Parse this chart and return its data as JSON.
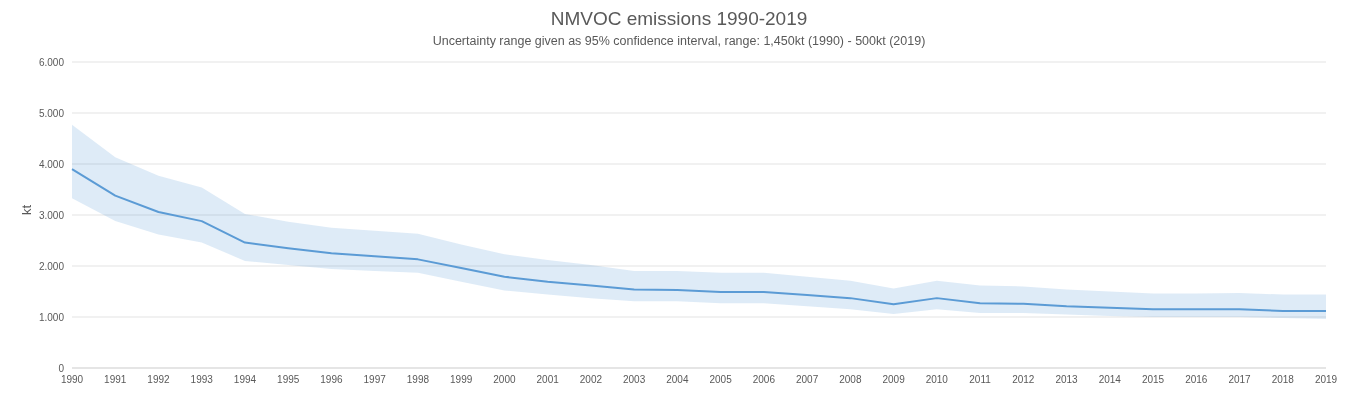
{
  "chart_data": {
    "type": "line",
    "title": "NMVOC emissions 1990-2019",
    "subtitle": "Uncertainty range given as 95% confidence interval, range: 1,450kt (1990) - 500kt (2019)",
    "ylabel": "kt",
    "categories": [
      "1990",
      "1991",
      "1992",
      "1993",
      "1994",
      "1995",
      "1996",
      "1997",
      "1998",
      "1999",
      "2000",
      "2001",
      "2002",
      "2003",
      "2004",
      "2005",
      "2006",
      "2007",
      "2008",
      "2009",
      "2010",
      "2011",
      "2012",
      "2013",
      "2014",
      "2015",
      "2016",
      "2017",
      "2018",
      "2019"
    ],
    "series": [
      {
        "color": "#5b9bd5",
        "values": [
          3900,
          3380,
          3060,
          2880,
          2460,
          2350,
          2250,
          2190,
          2130,
          1960,
          1790,
          1690,
          1620,
          1540,
          1530,
          1490,
          1490,
          1430,
          1370,
          1250,
          1370,
          1270,
          1260,
          1210,
          1180,
          1150,
          1150,
          1150,
          1120,
          1120
        ],
        "lower": [
          3330,
          2880,
          2620,
          2460,
          2100,
          2020,
          1940,
          1900,
          1870,
          1690,
          1520,
          1440,
          1370,
          1310,
          1310,
          1270,
          1270,
          1210,
          1150,
          1060,
          1150,
          1080,
          1080,
          1050,
          1020,
          1000,
          1000,
          1000,
          980,
          960
        ],
        "upper": [
          4770,
          4130,
          3770,
          3540,
          3020,
          2870,
          2750,
          2690,
          2630,
          2420,
          2230,
          2120,
          2020,
          1900,
          1900,
          1870,
          1870,
          1790,
          1710,
          1560,
          1710,
          1620,
          1600,
          1540,
          1500,
          1460,
          1460,
          1470,
          1440,
          1440
        ]
      }
    ],
    "ylim": [
      0,
      6000
    ],
    "yticks": [
      0,
      {
        "value": 1000,
        "label": "1.000"
      },
      {
        "value": 2000,
        "label": "2.000"
      },
      {
        "value": 3000,
        "label": "3.000"
      },
      {
        "value": 4000,
        "label": "4.000"
      },
      {
        "value": 5000,
        "label": "5.000"
      },
      {
        "value": 6000,
        "label": "6.000"
      }
    ],
    "grid": "y",
    "legend": false,
    "marker": "none",
    "line_style": "solid"
  }
}
